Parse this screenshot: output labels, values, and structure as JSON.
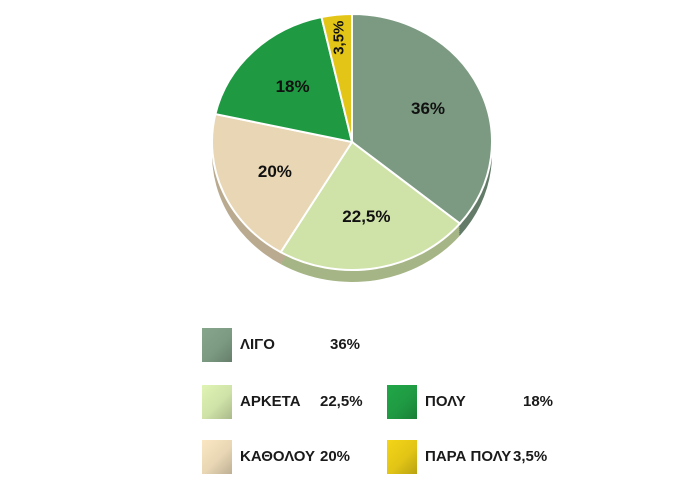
{
  "chart_data": {
    "type": "pie",
    "slices": [
      {
        "label": "ΛΙΓΟ",
        "value": 36,
        "display": "36%",
        "color": "#7c9a82"
      },
      {
        "label": "ΑΡΚΕΤΑ",
        "value": 22.5,
        "display": "22,5%",
        "color": "#cfe2a8"
      },
      {
        "label": "ΚΑΘΟΛΟΥ",
        "value": 20,
        "display": "20%",
        "color": "#e8d6b4"
      },
      {
        "label": "ΠΟΛΥ",
        "value": 18,
        "display": "18%",
        "color": "#1f9a43"
      },
      {
        "label": "ΠΑΡΑ ΠΟΛΥ",
        "value": 3.5,
        "display": "3,5%",
        "color": "#e2c516"
      }
    ],
    "legend_placement": "bottom"
  }
}
